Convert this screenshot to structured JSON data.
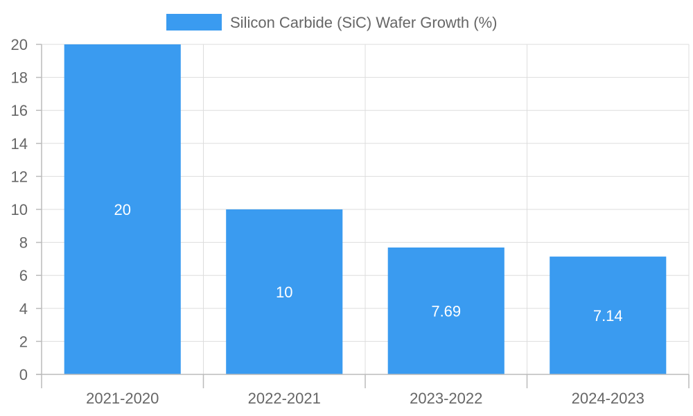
{
  "chart_data": {
    "type": "bar",
    "title": "",
    "xlabel": "",
    "ylabel": "",
    "categories": [
      "2021-2020",
      "2022-2021",
      "2023-2022",
      "2024-2023"
    ],
    "series": [
      {
        "name": "Silicon Carbide (SiC) Wafer Growth (%)",
        "values": [
          20,
          10,
          7.69,
          7.14
        ],
        "color": "#3a9bf0"
      }
    ],
    "data_labels": [
      "20",
      "10",
      "7.69",
      "7.14"
    ],
    "ylim": [
      0,
      20
    ],
    "yticks": [
      0,
      2,
      4,
      6,
      8,
      10,
      12,
      14,
      16,
      18,
      20
    ],
    "grid": true,
    "legend_position": "top-center"
  }
}
